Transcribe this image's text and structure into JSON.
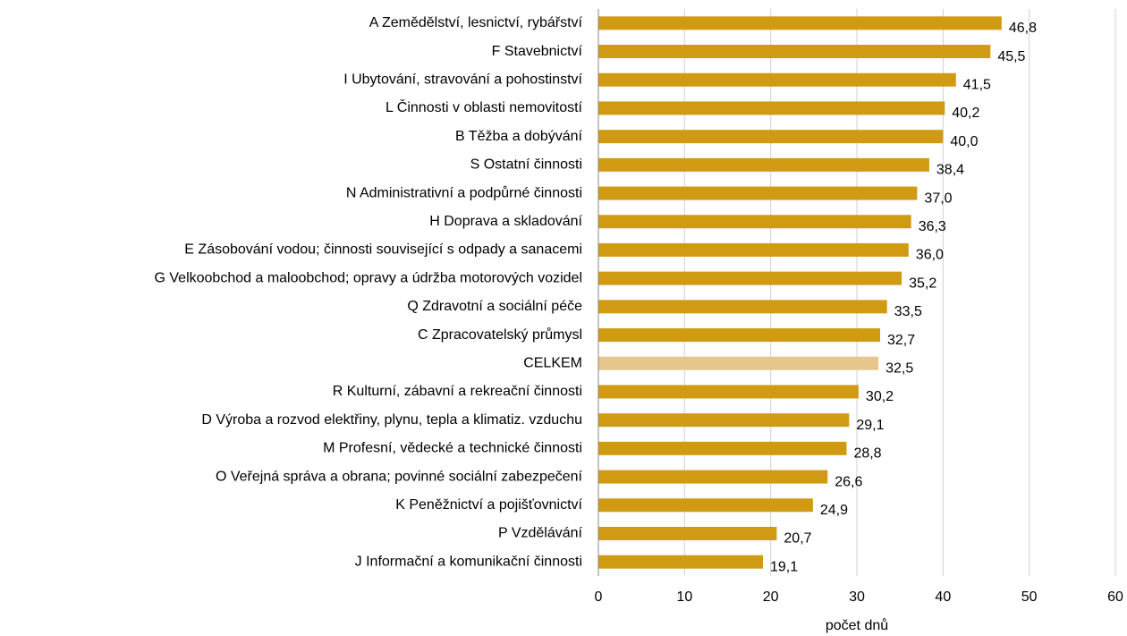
{
  "chart_data": {
    "type": "barh",
    "xlabel": "počet dnů",
    "categories": [
      "A Zemědělství, lesnictví, rybářství",
      "F Stavebnictví",
      "I Ubytování, stravování a pohostinství",
      "L Činnosti v oblasti nemovitostí",
      "B Těžba a dobývání",
      "S Ostatní činnosti",
      "N Administrativní a podpůrné činnosti",
      "H Doprava a skladování",
      "E Zásobování vodou; činnosti související s odpady a sanacemi",
      "G Velkoobchod a maloobchod; opravy a údržba motorových vozidel",
      "Q Zdravotní a sociální péče",
      "C Zpracovatelský průmysl",
      "CELKEM",
      "R Kulturní, zábavní a rekreační činnosti",
      "D Výroba a rozvod elektřiny, plynu, tepla a klimatiz. vzduchu",
      "M Profesní, vědecké a technické činnosti",
      "O Veřejná správa a obrana; povinné sociální zabezpečení",
      "K Peněžnictví a pojišťovnictví",
      "P Vzdělávání",
      "J Informační a komunikační činnosti"
    ],
    "values": [
      46.8,
      45.5,
      41.5,
      40.2,
      40.0,
      38.4,
      37.0,
      36.3,
      36.0,
      35.2,
      33.5,
      32.7,
      32.5,
      30.2,
      29.1,
      28.8,
      26.6,
      24.9,
      20.7,
      19.1
    ],
    "value_labels": [
      "46,8",
      "45,5",
      "41,5",
      "40,2",
      "40,0",
      "38,4",
      "37,0",
      "36,3",
      "36,0",
      "35,2",
      "33,5",
      "32,7",
      "32,5",
      "30,2",
      "29,1",
      "28,8",
      "26,6",
      "24,9",
      "20,7",
      "19,1"
    ],
    "colors": [
      "#d09a12",
      "#d09a12",
      "#d09a12",
      "#d09a12",
      "#d09a12",
      "#d09a12",
      "#d09a12",
      "#d09a12",
      "#d09a12",
      "#d09a12",
      "#d09a12",
      "#d09a12",
      "#e6c68d",
      "#d09a12",
      "#d09a12",
      "#d09a12",
      "#d09a12",
      "#d09a12",
      "#d09a12",
      "#d09a12"
    ],
    "xlim": [
      0,
      60
    ],
    "xticks": [
      0,
      10,
      20,
      30,
      40,
      50,
      60
    ],
    "grid": true
  }
}
